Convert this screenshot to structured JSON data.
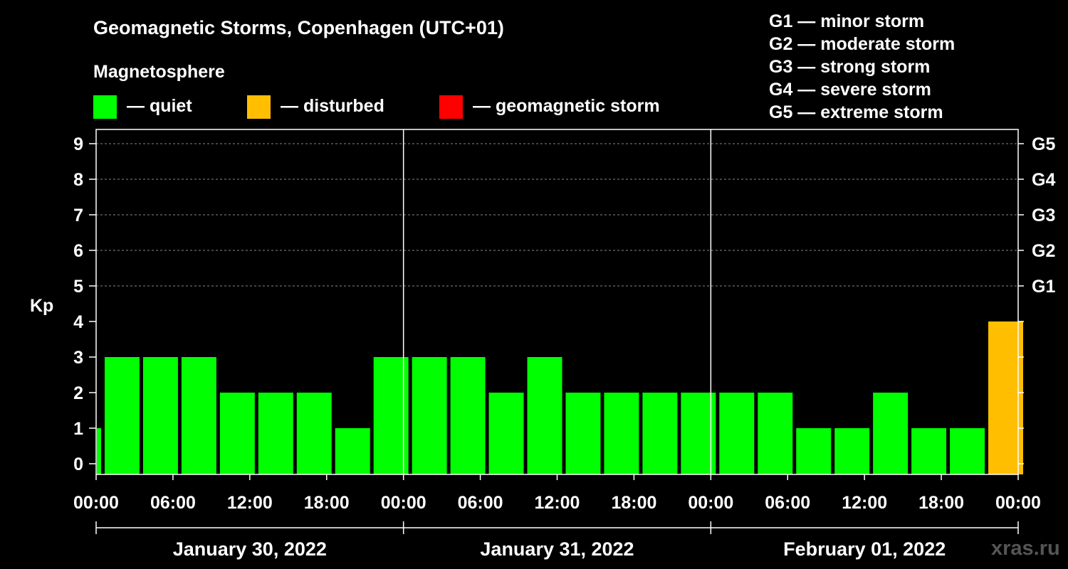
{
  "title": "Geomagnetic Storms, Copenhagen (UTC+01)",
  "magnetosphere_heading": "Magnetosphere",
  "legend": [
    {
      "label": "— quiet",
      "color": "#00ff00"
    },
    {
      "label": "— disturbed",
      "color": "#ffbf00"
    },
    {
      "label": "— geomagnetic storm",
      "color": "#ff0000"
    }
  ],
  "storm_scale": [
    "G1 — minor storm",
    "G2 — moderate storm",
    "G3 — strong storm",
    "G4 — severe storm",
    "G5 — extreme storm"
  ],
  "watermark": "xras.ru",
  "chart_data": {
    "type": "bar",
    "ylabel": "Kp",
    "ylim": [
      0,
      9
    ],
    "yticks": [
      0,
      1,
      2,
      3,
      4,
      5,
      6,
      7,
      8,
      9
    ],
    "right_ticks": [
      {
        "value": 5,
        "label": "G1"
      },
      {
        "value": 6,
        "label": "G2"
      },
      {
        "value": 7,
        "label": "G3"
      },
      {
        "value": 8,
        "label": "G4"
      },
      {
        "value": 9,
        "label": "G5"
      }
    ],
    "grid": "horizontal dashed, Kp 5 to 9",
    "xtick_labels": [
      "00:00",
      "06:00",
      "12:00",
      "18:00",
      "00:00",
      "06:00",
      "12:00",
      "18:00",
      "00:00",
      "06:00",
      "12:00",
      "18:00",
      "00:00"
    ],
    "days": [
      "January 30, 2022",
      "January 31, 2022",
      "February 01, 2022"
    ],
    "interval_hours": 3,
    "first_bar_start_hour": 0,
    "first_bar_end_hour": 0.5,
    "values": [
      1,
      3,
      3,
      3,
      2,
      2,
      2,
      1,
      3,
      3,
      3,
      2,
      3,
      2,
      2,
      2,
      2,
      2,
      2,
      1,
      1,
      2,
      1,
      1,
      4
    ],
    "status_colors": {
      "quiet": "#00ff00",
      "disturbed": "#ffbf00",
      "storm": "#ff0000"
    }
  }
}
